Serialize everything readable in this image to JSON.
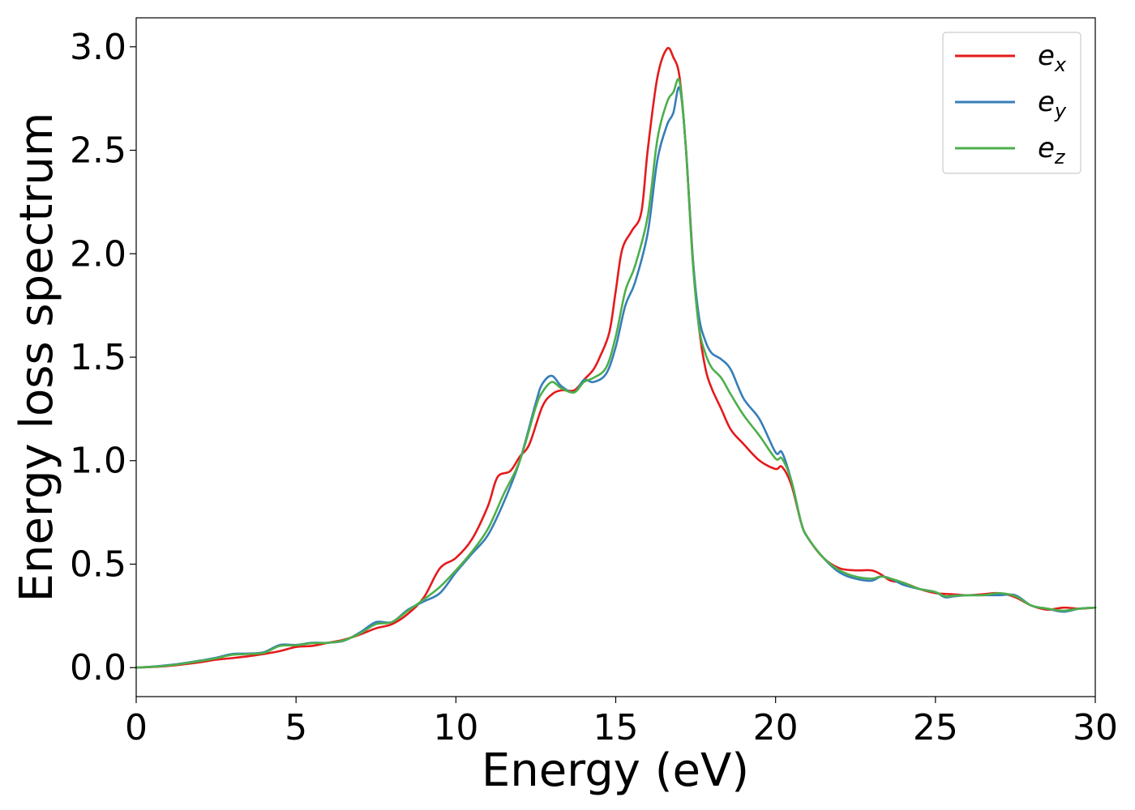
{
  "chart_data": {
    "type": "line",
    "title": "",
    "xlabel": "Energy (eV)",
    "ylabel": "Energy loss spectrum",
    "xlim": [
      0,
      30
    ],
    "ylim": [
      -0.14,
      3.14
    ],
    "xticks": [
      0,
      5,
      10,
      15,
      20,
      25,
      30
    ],
    "xtick_labels": [
      "0",
      "5",
      "10",
      "15",
      "20",
      "25",
      "30"
    ],
    "yticks": [
      0.0,
      0.5,
      1.0,
      1.5,
      2.0,
      2.5,
      3.0
    ],
    "ytick_labels": [
      "0.0",
      "0.5",
      "1.0",
      "1.5",
      "2.0",
      "2.5",
      "3.0"
    ],
    "grid": false,
    "legend_position": "top-right",
    "series": [
      {
        "name": "e_x",
        "legend_base": "e",
        "legend_sub": "x",
        "color": "#e41a1c",
        "x": [
          0,
          0.5,
          1,
          1.5,
          2,
          2.5,
          3,
          3.5,
          4,
          4.5,
          5,
          5.5,
          6,
          6.5,
          7,
          7.5,
          8,
          8.5,
          9,
          9.5,
          10,
          10.5,
          11,
          11.3,
          11.7,
          12,
          12.3,
          12.7,
          13,
          13.3,
          13.7,
          14,
          14.3,
          14.5,
          14.8,
          15,
          15.2,
          15.5,
          15.8,
          16,
          16.3,
          16.6,
          16.8,
          17,
          17.2,
          17.4,
          17.6,
          17.8,
          18,
          18.3,
          18.6,
          19,
          19.5,
          20,
          20.2,
          20.5,
          20.8,
          21,
          21.5,
          22,
          22.5,
          23,
          23.3,
          23.6,
          24,
          24.5,
          25,
          25.5,
          26,
          26.5,
          27,
          27.5,
          28,
          28.5,
          29,
          29.5,
          30
        ],
        "y": [
          0.0,
          0.003,
          0.008,
          0.016,
          0.026,
          0.038,
          0.046,
          0.055,
          0.066,
          0.08,
          0.1,
          0.105,
          0.12,
          0.135,
          0.16,
          0.19,
          0.21,
          0.26,
          0.34,
          0.48,
          0.53,
          0.62,
          0.78,
          0.92,
          0.95,
          1.02,
          1.08,
          1.26,
          1.32,
          1.34,
          1.34,
          1.39,
          1.44,
          1.5,
          1.62,
          1.82,
          2.02,
          2.11,
          2.2,
          2.5,
          2.85,
          2.99,
          2.95,
          2.85,
          2.5,
          2.0,
          1.65,
          1.45,
          1.35,
          1.25,
          1.15,
          1.08,
          1.0,
          0.96,
          0.97,
          0.88,
          0.7,
          0.63,
          0.53,
          0.48,
          0.47,
          0.47,
          0.45,
          0.42,
          0.41,
          0.38,
          0.36,
          0.355,
          0.35,
          0.355,
          0.36,
          0.34,
          0.3,
          0.28,
          0.29,
          0.285,
          0.29
        ]
      },
      {
        "name": "e_y",
        "legend_base": "e",
        "legend_sub": "y",
        "color": "#377eb8",
        "x": [
          0,
          0.5,
          1,
          1.5,
          2,
          2.5,
          3,
          3.5,
          4,
          4.5,
          5,
          5.5,
          6,
          6.5,
          7,
          7.5,
          8,
          8.5,
          9,
          9.5,
          10,
          10.5,
          11,
          11.5,
          12,
          12.5,
          12.7,
          13,
          13.3,
          13.7,
          14,
          14.3,
          14.7,
          15,
          15.3,
          15.6,
          16,
          16.3,
          16.6,
          16.8,
          17,
          17.2,
          17.4,
          17.6,
          17.8,
          18,
          18.3,
          18.6,
          19,
          19.5,
          20,
          20.2,
          20.5,
          20.8,
          21,
          21.5,
          22,
          22.5,
          23,
          23.3,
          23.6,
          24,
          24.5,
          25,
          25.3,
          25.6,
          26,
          26.5,
          27,
          27.5,
          28,
          28.5,
          29,
          29.5,
          30
        ],
        "y": [
          0.0,
          0.005,
          0.012,
          0.022,
          0.034,
          0.048,
          0.066,
          0.068,
          0.075,
          0.11,
          0.11,
          0.12,
          0.12,
          0.13,
          0.17,
          0.22,
          0.22,
          0.28,
          0.32,
          0.36,
          0.46,
          0.55,
          0.64,
          0.8,
          1.0,
          1.28,
          1.37,
          1.41,
          1.36,
          1.33,
          1.39,
          1.38,
          1.42,
          1.55,
          1.75,
          1.86,
          2.1,
          2.45,
          2.62,
          2.68,
          2.8,
          2.5,
          2.0,
          1.7,
          1.58,
          1.52,
          1.49,
          1.44,
          1.3,
          1.2,
          1.04,
          1.04,
          0.9,
          0.7,
          0.63,
          0.53,
          0.46,
          0.43,
          0.42,
          0.44,
          0.43,
          0.4,
          0.38,
          0.365,
          0.34,
          0.345,
          0.35,
          0.35,
          0.35,
          0.35,
          0.3,
          0.285,
          0.27,
          0.285,
          0.29
        ]
      },
      {
        "name": "e_z",
        "legend_base": "e",
        "legend_sub": "z",
        "color": "#4daf4a",
        "x": [
          0,
          0.5,
          1,
          1.5,
          2,
          2.5,
          3,
          3.5,
          4,
          4.5,
          5,
          5.5,
          6,
          6.5,
          7,
          7.5,
          8,
          8.5,
          9,
          9.5,
          10,
          10.5,
          11,
          11.5,
          12,
          12.5,
          12.7,
          13,
          13.3,
          13.7,
          14,
          14.3,
          14.7,
          15,
          15.3,
          15.6,
          16,
          16.3,
          16.6,
          16.8,
          17,
          17.2,
          17.4,
          17.6,
          17.8,
          18,
          18.3,
          18.6,
          19,
          19.5,
          20,
          20.2,
          20.5,
          20.8,
          21,
          21.5,
          22,
          22.5,
          23,
          23.3,
          23.6,
          24,
          24.5,
          25,
          25.3,
          25.6,
          26,
          26.5,
          27,
          27.5,
          28,
          28.5,
          29,
          29.5,
          30
        ],
        "y": [
          0.0,
          0.004,
          0.01,
          0.02,
          0.032,
          0.045,
          0.062,
          0.066,
          0.072,
          0.105,
          0.108,
          0.118,
          0.12,
          0.132,
          0.165,
          0.21,
          0.22,
          0.275,
          0.33,
          0.39,
          0.47,
          0.56,
          0.67,
          0.84,
          1.0,
          1.26,
          1.33,
          1.38,
          1.35,
          1.33,
          1.38,
          1.4,
          1.45,
          1.6,
          1.82,
          1.94,
          2.18,
          2.55,
          2.73,
          2.78,
          2.83,
          2.5,
          1.98,
          1.65,
          1.52,
          1.45,
          1.4,
          1.32,
          1.22,
          1.12,
          1.01,
          1.01,
          0.9,
          0.7,
          0.63,
          0.53,
          0.47,
          0.44,
          0.43,
          0.44,
          0.43,
          0.41,
          0.38,
          0.365,
          0.345,
          0.348,
          0.35,
          0.35,
          0.36,
          0.345,
          0.3,
          0.285,
          0.275,
          0.285,
          0.29
        ]
      }
    ]
  }
}
